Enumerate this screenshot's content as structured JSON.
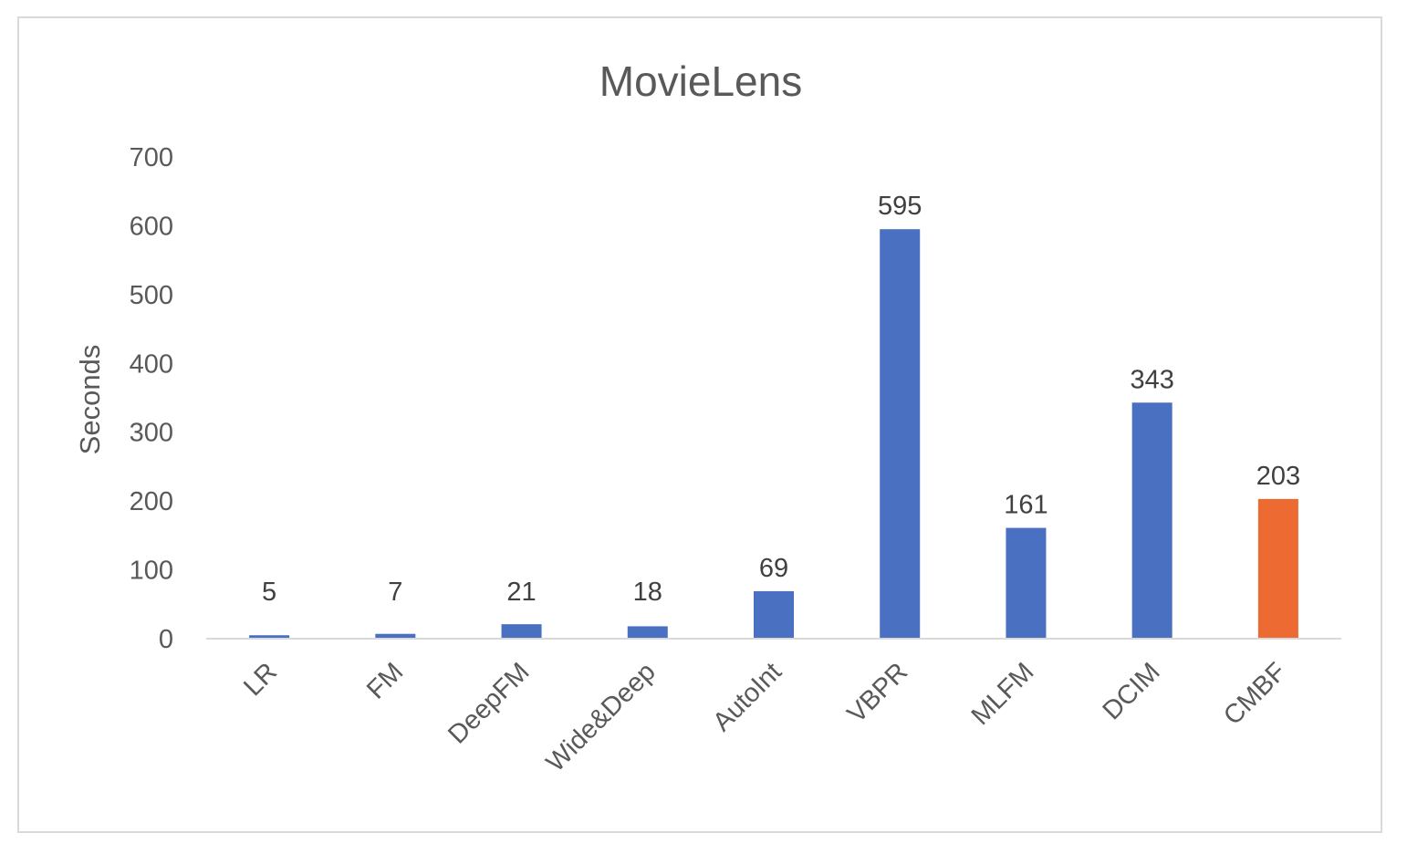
{
  "chart_data": {
    "type": "bar",
    "title": "MovieLens",
    "xlabel": "",
    "ylabel": "Seconds",
    "ylim": [
      0,
      700
    ],
    "yticks": [
      0,
      100,
      200,
      300,
      400,
      500,
      600,
      700
    ],
    "grid": false,
    "legend": "none",
    "categories": [
      "LR",
      "FM",
      "DeepFM",
      "Wide&Deep",
      "AutoInt",
      "VBPR",
      "MLFM",
      "DCIM",
      "CMBF"
    ],
    "values": [
      5,
      7,
      21,
      18,
      69,
      595,
      161,
      343,
      203
    ],
    "data_labels": [
      "5",
      "7",
      "21",
      "18",
      "69",
      "595",
      "161",
      "343",
      "203"
    ],
    "colors": {
      "default_bar": "#4a70c1",
      "highlight_bar": "#ed6a33",
      "highlight_category": "CMBF",
      "text": "#595959",
      "axis": "#d9d9d9"
    }
  }
}
